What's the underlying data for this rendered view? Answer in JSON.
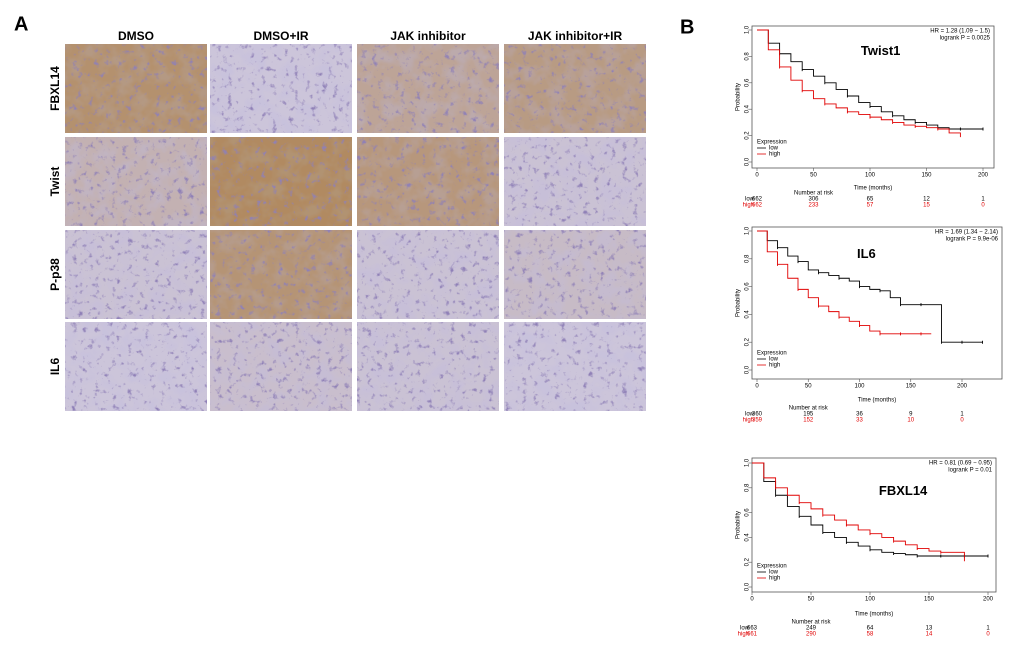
{
  "panel_a": {
    "label": "A",
    "columns": [
      "DMSO",
      "DMSO+IR",
      "JAK inhibitor",
      "JAK inhibitor+IR"
    ],
    "rows": [
      "FBXL14",
      "Twist",
      "P-p38",
      "IL6"
    ]
  },
  "panel_b": {
    "label": "B"
  },
  "chart_data": [
    {
      "type": "line",
      "title": "Twist1",
      "annotation": [
        "HR = 1.28 (1.09 − 1.5)",
        "logrank P = 0.0025"
      ],
      "xlabel": "Time (months)",
      "ylabel": "Probability",
      "legend_title": "Expression",
      "risk_title": "Number at risk",
      "x": [
        0,
        10,
        20,
        30,
        40,
        50,
        60,
        70,
        80,
        90,
        100,
        110,
        120,
        130,
        140,
        150,
        160,
        170,
        180,
        190,
        200
      ],
      "series": [
        {
          "name": "low",
          "color": "#000000",
          "values": [
            1,
            0.9,
            0.82,
            0.76,
            0.7,
            0.65,
            0.6,
            0.55,
            0.5,
            0.45,
            0.42,
            0.38,
            0.35,
            0.32,
            0.3,
            0.28,
            0.26,
            0.25,
            0.25,
            0.25,
            0.25
          ],
          "at_risk": [
            662,
            306,
            65,
            12,
            1
          ]
        },
        {
          "name": "high",
          "color": "#e00000",
          "values": [
            1,
            0.85,
            0.72,
            0.62,
            0.54,
            0.48,
            0.44,
            0.41,
            0.38,
            0.36,
            0.34,
            0.32,
            0.3,
            0.28,
            0.27,
            0.26,
            0.25,
            0.22,
            0.2,
            null,
            null
          ],
          "at_risk": [
            662,
            233,
            57,
            15,
            0
          ]
        }
      ],
      "xlim": [
        0,
        205
      ],
      "ylim": [
        0,
        1
      ],
      "xticks": [
        0,
        50,
        100,
        150,
        200
      ],
      "yticks": [
        {
          "value": 0,
          "label": "0.0"
        },
        0.2,
        0.4,
        0.6,
        0.8,
        {
          "value": 1,
          "label": "1.0"
        }
      ]
    },
    {
      "type": "line",
      "title": "IL6",
      "annotation": [
        "HR = 1.69 (1.34 − 2.14)",
        "logrank P = 9.9e-06"
      ],
      "xlabel": "Time (months)",
      "ylabel": "Probability",
      "legend_title": "Expression",
      "risk_title": "Number at risk",
      "x": [
        0,
        10,
        20,
        30,
        40,
        50,
        60,
        70,
        80,
        90,
        100,
        110,
        120,
        130,
        140,
        150,
        160,
        170,
        180,
        190,
        200,
        210,
        220
      ],
      "series": [
        {
          "name": "low",
          "color": "#000000",
          "values": [
            1,
            0.93,
            0.88,
            0.82,
            0.78,
            0.72,
            0.7,
            0.68,
            0.66,
            0.64,
            0.6,
            0.58,
            0.57,
            0.52,
            0.47,
            0.47,
            0.47,
            0.47,
            0.2,
            0.2,
            0.2,
            0.2,
            0.2
          ],
          "at_risk": [
            360,
            195,
            36,
            9,
            1
          ]
        },
        {
          "name": "high",
          "color": "#e00000",
          "values": [
            1,
            0.85,
            0.76,
            0.66,
            0.58,
            0.52,
            0.46,
            0.42,
            0.38,
            0.35,
            0.32,
            0.28,
            0.26,
            0.26,
            0.26,
            0.26,
            0.26,
            0.26,
            null,
            null,
            null,
            null,
            null
          ],
          "at_risk": [
            359,
            152,
            33,
            10,
            0
          ]
        }
      ],
      "xlim": [
        -5,
        235
      ],
      "ylim": [
        0,
        1
      ],
      "xticks": [
        0,
        50,
        100,
        150,
        200
      ],
      "yticks": [
        {
          "value": 0,
          "label": "0.0"
        },
        0.2,
        0.4,
        0.6,
        0.8,
        {
          "value": 1,
          "label": "1.0"
        }
      ]
    },
    {
      "type": "line",
      "title": "FBXL14",
      "annotation": [
        "HR = 0.81 (0.69 − 0.95)",
        "logrank P = 0.01"
      ],
      "xlabel": "Time (months)",
      "ylabel": "Probability",
      "legend_title": "Expression",
      "risk_title": "Number at risk",
      "x": [
        0,
        10,
        20,
        30,
        40,
        50,
        60,
        70,
        80,
        90,
        100,
        110,
        120,
        130,
        140,
        150,
        160,
        170,
        180,
        190,
        200
      ],
      "series": [
        {
          "name": "low",
          "color": "#000000",
          "values": [
            1,
            0.85,
            0.74,
            0.65,
            0.57,
            0.5,
            0.44,
            0.4,
            0.36,
            0.33,
            0.3,
            0.28,
            0.27,
            0.26,
            0.25,
            0.25,
            0.25,
            0.25,
            0.25,
            0.25,
            0.25
          ],
          "at_risk": [
            663,
            249,
            64,
            13,
            1
          ]
        },
        {
          "name": "high",
          "color": "#e00000",
          "values": [
            1,
            0.88,
            0.8,
            0.74,
            0.68,
            0.63,
            0.58,
            0.54,
            0.5,
            0.46,
            0.43,
            0.4,
            0.37,
            0.34,
            0.31,
            0.29,
            0.28,
            0.28,
            0.22,
            null,
            null
          ],
          "at_risk": [
            661,
            290,
            58,
            14,
            0
          ]
        }
      ],
      "xlim": [
        0,
        205
      ],
      "ylim": [
        0,
        1
      ],
      "xticks": [
        0,
        50,
        100,
        150,
        200
      ],
      "yticks": [
        {
          "value": 0,
          "label": "0.0"
        },
        0.2,
        0.4,
        0.6,
        0.8,
        {
          "value": 1,
          "label": "1.0"
        }
      ]
    }
  ]
}
